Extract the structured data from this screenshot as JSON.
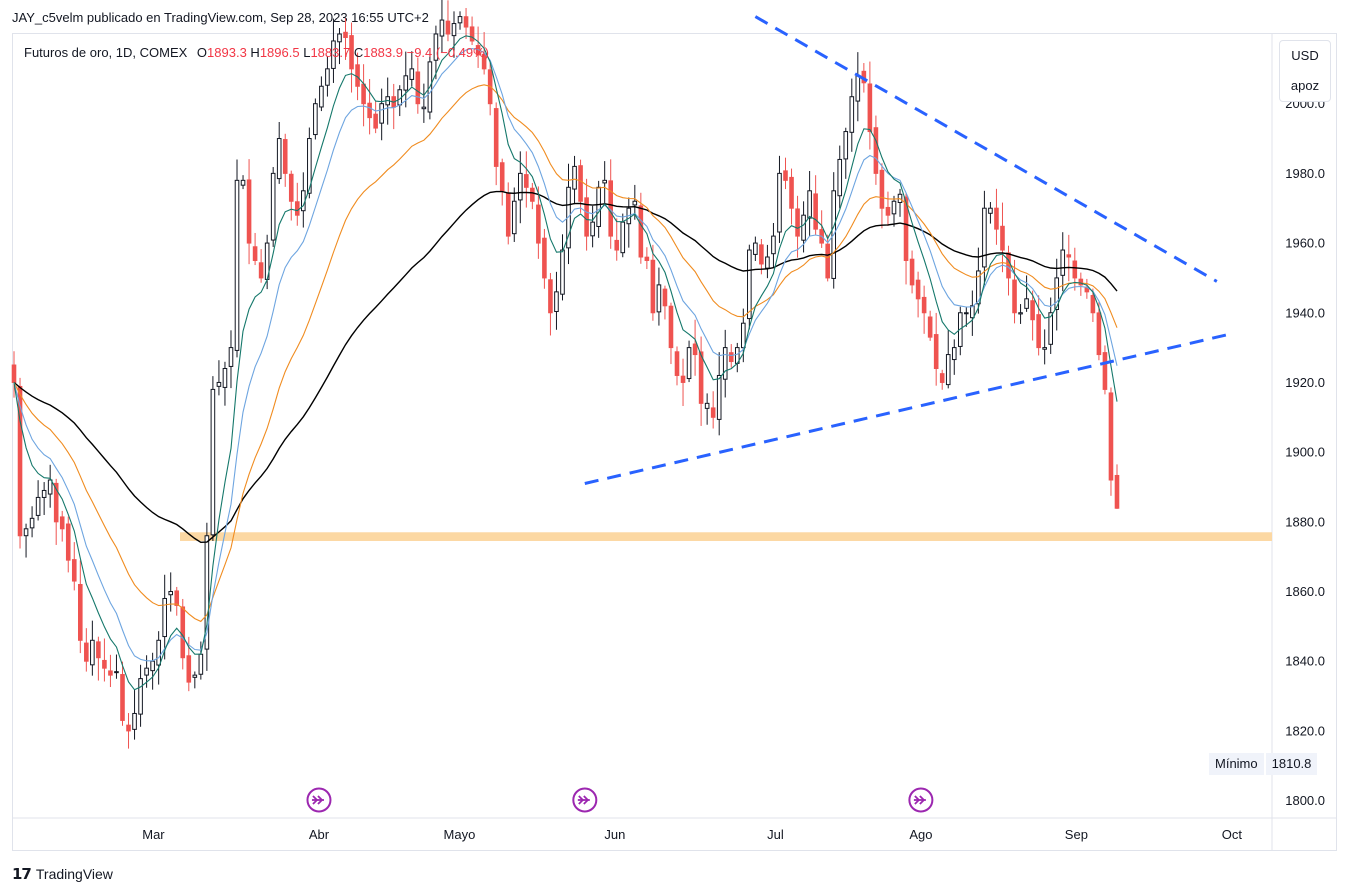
{
  "header": {
    "publisher_line": "JAY_c5velm publicado en TradingView.com, Sep 28, 2023 16:55 UTC+2"
  },
  "legend": {
    "symbol": "Futuros de oro, 1D, COMEX",
    "o_label": "O",
    "o_value": "1893.3",
    "h_label": "H",
    "h_value": "1896.5",
    "l_label": "L",
    "l_value": "1883.7",
    "c_label": "C",
    "c_value": "1883.9",
    "change": "−9.4 (−0.49%)"
  },
  "currency": {
    "code": "USD",
    "mode": "apoz"
  },
  "min_marker": {
    "label": "Mínimo",
    "value": "1810.8"
  },
  "brand": {
    "name": "TradingView",
    "logo_icon": "tradingview-logo-icon"
  },
  "colors": {
    "up": "#131722",
    "down": "#ef5350",
    "ma_black": "#000000",
    "ma_orange": "#f08c20",
    "ma_green": "#15786b",
    "ma_blue": "#6ea5e0",
    "trendline": "#2962ff",
    "zone": "#fcd8a3",
    "event_icon": "#9c27b0"
  },
  "chart_data": {
    "type": "candlestick",
    "title": "Futuros de oro, 1D, COMEX",
    "y_axis": {
      "ticks": [
        1800,
        1820,
        1840,
        1860,
        1880,
        1900,
        1920,
        1940,
        1960,
        1980,
        2000
      ],
      "range": [
        1795,
        2020
      ]
    },
    "x_axis": {
      "ticks": [
        {
          "label": "Mar",
          "date": "2023-03-01"
        },
        {
          "label": "Abr",
          "date": "2023-04-03"
        },
        {
          "label": "Mayo",
          "date": "2023-05-01"
        },
        {
          "label": "Jun",
          "date": "2023-06-01"
        },
        {
          "label": "Jul",
          "date": "2023-07-03"
        },
        {
          "label": "Ago",
          "date": "2023-08-01"
        },
        {
          "label": "Sep",
          "date": "2023-09-01"
        },
        {
          "label": "Oct",
          "date": "2023-10-02"
        }
      ]
    },
    "close_series": [
      1920,
      1876,
      1878,
      1881,
      1887,
      1889,
      1892,
      1880,
      1878,
      1869,
      1863,
      1846,
      1840,
      1846,
      1841,
      1838,
      1836,
      1837,
      1823,
      1820,
      1825,
      1835,
      1838,
      1840,
      1846,
      1858,
      1860,
      1856,
      1841,
      1834,
      1836,
      1842,
      1876,
      1918,
      1920,
      1924,
      1930,
      1978,
      1978,
      1960,
      1955,
      1950,
      1960,
      1980,
      1990,
      1980,
      1972,
      1968,
      1975,
      1990,
      2000,
      2005,
      2010,
      2018,
      2020,
      2019,
      2010,
      2005,
      2000,
      1996,
      1993,
      2000,
      2002,
      1999,
      2004,
      2008,
      2010,
      2000,
      1999,
      2012,
      2020,
      2024,
      2020,
      2023,
      2025,
      2022,
      2018,
      2014,
      2010,
      2000,
      1982,
      1975,
      1962,
      1972,
      1980,
      1976,
      1972,
      1960,
      1950,
      1940,
      1946,
      1958,
      1976,
      1982,
      1972,
      1962,
      1966,
      1976,
      1978,
      1962,
      1958,
      1966,
      1970,
      1972,
      1956,
      1955,
      1940,
      1948,
      1942,
      1930,
      1922,
      1920,
      1930,
      1928,
      1914,
      1914,
      1910,
      1922,
      1930,
      1926,
      1930,
      1937,
      1958,
      1960,
      1954,
      1956,
      1962,
      1980,
      1978,
      1970,
      1962,
      1968,
      1975,
      1964,
      1960,
      1950,
      1975,
      1984,
      1992,
      2002,
      2008,
      2006,
      1992,
      1980,
      1970,
      1968,
      1972,
      1974,
      1955,
      1948,
      1944,
      1940,
      1933,
      1924,
      1920,
      1928,
      1930,
      1940,
      1940,
      1942,
      1952,
      1970,
      1970,
      1964,
      1958,
      1950,
      1940,
      1940,
      1944,
      1938,
      1930,
      1930,
      1940,
      1950,
      1958,
      1956,
      1950,
      1948,
      1946,
      1940,
      1928,
      1918,
      1892,
      1884
    ],
    "moving_averages": [
      {
        "color": "#000000",
        "label": ""
      },
      {
        "color": "#f08c20",
        "label": ""
      },
      {
        "color": "#6ea5e0",
        "label": ""
      },
      {
        "color": "#15786b",
        "label": ""
      }
    ],
    "trendlines": [
      {
        "from": {
          "date": "2023-05-26",
          "value": 1891
        },
        "to": {
          "date": "2023-10-02",
          "value": 1934
        }
      },
      {
        "from": {
          "date": "2023-06-29",
          "value": 2025
        },
        "to": {
          "date": "2023-09-29",
          "value": 1949
        }
      }
    ],
    "support_zone": {
      "from": 1874.5,
      "to": 1877
    },
    "events": [
      "2023-04-03",
      "2023-05-26",
      "2023-08-01"
    ],
    "low_marker_value": 1810.8
  }
}
